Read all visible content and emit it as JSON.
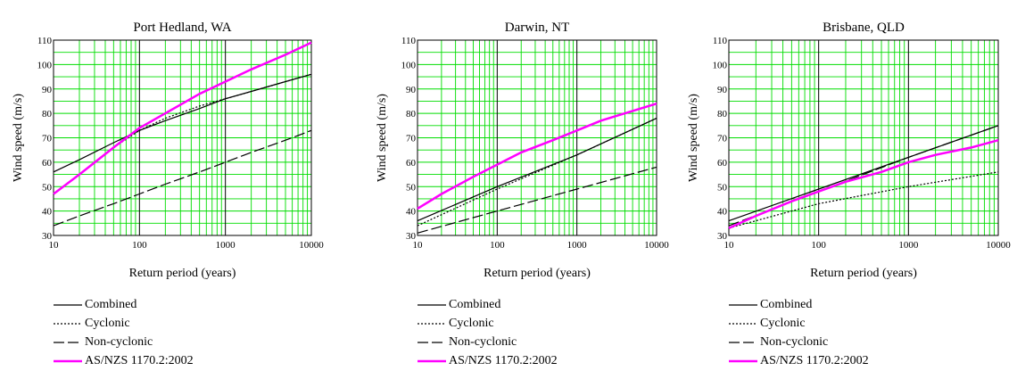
{
  "chart_data": [
    {
      "type": "line",
      "title": "Port Hedland, WA",
      "xlabel": "Return period (years)",
      "ylabel": "Wind speed (m/s)",
      "xscale": "log",
      "xlim": [
        10,
        10000
      ],
      "ylim": [
        30,
        110
      ],
      "xticks": [
        "10",
        "100",
        "1000",
        "10000"
      ],
      "yticks": [
        "30",
        "40",
        "50",
        "60",
        "70",
        "80",
        "90",
        "100",
        "110"
      ],
      "grid": true,
      "series": [
        {
          "name": "Combined",
          "style": "solid",
          "color": "#000000",
          "x": [
            10,
            20,
            50,
            100,
            200,
            500,
            1000,
            2000,
            5000,
            10000
          ],
          "y": [
            56,
            61,
            68,
            73,
            77,
            82,
            86,
            89,
            93,
            96
          ]
        },
        {
          "name": "Cyclonic",
          "style": "dotted",
          "color": "#000000",
          "x": [
            10,
            20,
            50,
            100,
            200,
            500,
            1000,
            2000,
            5000,
            10000
          ],
          "y": [
            47,
            55,
            66,
            73,
            78,
            83,
            86,
            89,
            93,
            96
          ]
        },
        {
          "name": "Non-cyclonic",
          "style": "dashed",
          "color": "#000000",
          "x": [
            10,
            20,
            50,
            100,
            200,
            500,
            1000,
            2000,
            5000,
            10000
          ],
          "y": [
            34,
            38,
            43,
            47,
            51,
            56,
            60,
            64,
            69,
            73
          ]
        },
        {
          "name": "AS/NZS 1170.2:2002",
          "style": "solid",
          "color": "#ff00ff",
          "x": [
            10,
            20,
            50,
            100,
            200,
            500,
            1000,
            2000,
            5000,
            10000
          ],
          "y": [
            47,
            55,
            66,
            74,
            80,
            88,
            93,
            98,
            104,
            109
          ]
        }
      ]
    },
    {
      "type": "line",
      "title": "Darwin, NT",
      "xlabel": "Return period (years)",
      "ylabel": "Wind speed (m/s)",
      "xscale": "log",
      "xlim": [
        10,
        10000
      ],
      "ylim": [
        30,
        110
      ],
      "xticks": [
        "10",
        "100",
        "1000",
        "10000"
      ],
      "yticks": [
        "30",
        "40",
        "50",
        "60",
        "70",
        "80",
        "90",
        "100",
        "110"
      ],
      "grid": true,
      "series": [
        {
          "name": "Combined",
          "style": "solid",
          "color": "#000000",
          "x": [
            10,
            100,
            1000,
            10000
          ],
          "y": [
            36,
            50,
            63,
            78
          ]
        },
        {
          "name": "Cyclonic",
          "style": "dotted",
          "color": "#000000",
          "x": [
            10,
            100,
            1000,
            10000
          ],
          "y": [
            34,
            49,
            63,
            78
          ]
        },
        {
          "name": "Non-cyclonic",
          "style": "dashed",
          "color": "#000000",
          "x": [
            10,
            100,
            1000,
            10000
          ],
          "y": [
            31,
            40,
            49,
            58
          ]
        },
        {
          "name": "AS/NZS 1170.2:2002",
          "style": "solid",
          "color": "#ff00ff",
          "x": [
            10,
            20,
            50,
            100,
            200,
            500,
            1000,
            2000,
            5000,
            10000
          ],
          "y": [
            41,
            47,
            54,
            59,
            64,
            69,
            73,
            77,
            81,
            84
          ]
        }
      ]
    },
    {
      "type": "line",
      "title": "Brisbane, QLD",
      "xlabel": "Return period (years)",
      "ylabel": "Wind speed (m/s)",
      "xscale": "log",
      "xlim": [
        10,
        10000
      ],
      "ylim": [
        30,
        110
      ],
      "xticks": [
        "10",
        "100",
        "1000",
        "10000"
      ],
      "yticks": [
        "30",
        "40",
        "50",
        "60",
        "70",
        "80",
        "90",
        "100",
        "110"
      ],
      "grid": true,
      "series": [
        {
          "name": "Combined",
          "style": "solid",
          "color": "#000000",
          "x": [
            10,
            100,
            1000,
            10000
          ],
          "y": [
            36,
            49,
            62,
            75
          ]
        },
        {
          "name": "Cyclonic",
          "style": "dotted",
          "color": "#000000",
          "x": [
            10,
            100,
            1000,
            10000
          ],
          "y": [
            33,
            43,
            50,
            56
          ]
        },
        {
          "name": "Non-cyclonic",
          "style": "dashed",
          "color": "#000000",
          "x": [
            10,
            100,
            1000,
            10000
          ],
          "y": [
            34,
            48,
            62,
            75
          ]
        },
        {
          "name": "AS/NZS 1170.2:2002",
          "style": "solid",
          "color": "#ff00ff",
          "x": [
            10,
            20,
            50,
            100,
            200,
            500,
            1000,
            2000,
            5000,
            10000
          ],
          "y": [
            33,
            38,
            44,
            48,
            52,
            56,
            60,
            63,
            66,
            69
          ]
        }
      ]
    }
  ],
  "legend": [
    {
      "label": "Combined",
      "style": "solid",
      "color": "#000000"
    },
    {
      "label": "Cyclonic",
      "style": "dotted",
      "color": "#000000"
    },
    {
      "label": "Non-cyclonic",
      "style": "dashed",
      "color": "#000000"
    },
    {
      "label": "AS/NZS 1170.2:2002",
      "style": "solid",
      "color": "#ff00ff"
    }
  ],
  "colors": {
    "grid": "#00dd00",
    "decade_line": "#000000",
    "axis": "#000000"
  }
}
